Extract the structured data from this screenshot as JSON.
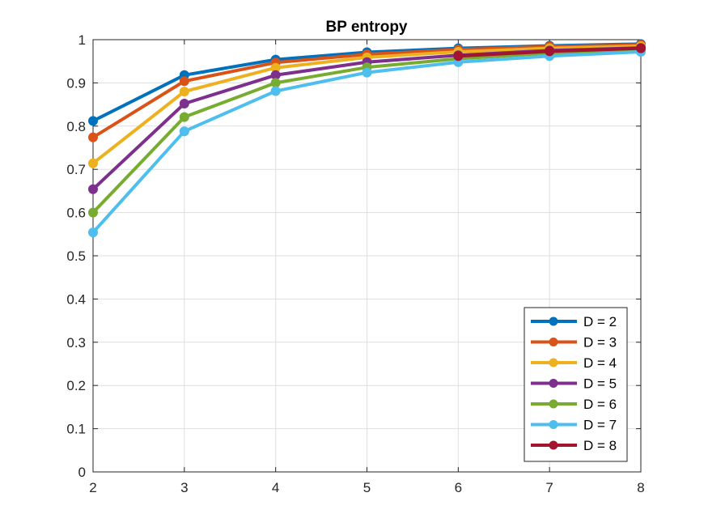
{
  "chart_data": {
    "type": "line",
    "title": "BP entropy",
    "xlabel": "",
    "ylabel": "",
    "x": [
      2,
      3,
      4,
      5,
      6,
      7,
      8
    ],
    "xlim": [
      2,
      8
    ],
    "ylim": [
      0,
      1
    ],
    "xticks": [
      "2",
      "3",
      "4",
      "5",
      "6",
      "7",
      "8"
    ],
    "yticks": [
      "0",
      "0.1",
      "0.2",
      "0.3",
      "0.4",
      "0.5",
      "0.6",
      "0.7",
      "0.8",
      "0.9",
      "1"
    ],
    "grid": true,
    "legend_position": "bottom-right",
    "series": [
      {
        "name": "D = 2",
        "color": "#0072BD",
        "values": [
          0.812,
          0.918,
          0.954,
          0.971,
          0.98,
          0.986,
          0.99
        ]
      },
      {
        "name": "D = 3",
        "color": "#D95319",
        "values": [
          0.774,
          0.904,
          0.947,
          0.966,
          0.977,
          0.984,
          0.988
        ]
      },
      {
        "name": "D = 4",
        "color": "#EDB120",
        "values": [
          0.714,
          0.88,
          0.935,
          0.959,
          0.972,
          0.98,
          0.985
        ]
      },
      {
        "name": "D = 5",
        "color": "#7E2F8E",
        "values": [
          0.654,
          0.852,
          0.918,
          0.948,
          0.964,
          0.975,
          0.981
        ]
      },
      {
        "name": "D = 6",
        "color": "#77AC30",
        "values": [
          0.6,
          0.821,
          0.9,
          0.936,
          0.956,
          0.969,
          0.977
        ]
      },
      {
        "name": "D = 7",
        "color": "#4DBEEE",
        "values": [
          0.554,
          0.788,
          0.881,
          0.924,
          0.948,
          0.962,
          0.972
        ]
      },
      {
        "name": "D = 8",
        "color": "#A2142F",
        "values": [
          null,
          null,
          null,
          null,
          0.962,
          0.973,
          0.98
        ]
      }
    ]
  }
}
